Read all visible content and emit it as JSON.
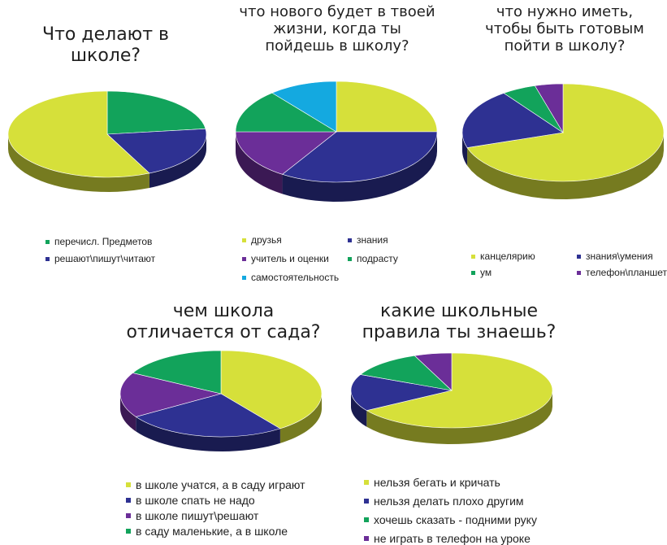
{
  "colors": {
    "yellow": "#d6e03a",
    "navy": "#2e3192",
    "green": "#12a35b",
    "purple": "#6b2e98",
    "cyan": "#14a9e0"
  },
  "chart_data": [
    {
      "type": "pie",
      "title": "Что делают  в\nшколе?",
      "series": [
        {
          "labels": [
            "перечисл.  Предметов",
            "решают\\пишут\\читают",
            ""
          ],
          "values": [
            23,
            20,
            57
          ],
          "colors": [
            "green",
            "navy",
            "yellow"
          ]
        }
      ],
      "legend": [
        "перечисл.  Предметов",
        "решают\\пишут\\читают"
      ],
      "legend_colors": [
        "green",
        "navy"
      ],
      "legend_placement": "bottom"
    },
    {
      "type": "pie",
      "title": "что нового будет в твоей\nжизни, когда ты\nпойдешь в школу?",
      "series": [
        {
          "labels": [
            "друзья",
            "знания",
            "учитель и оценки",
            "подрасту",
            "самостоятельность"
          ],
          "values": [
            25,
            34,
            16,
            14,
            11
          ],
          "colors": [
            "yellow",
            "navy",
            "purple",
            "green",
            "cyan"
          ]
        }
      ],
      "legend": [
        "друзья",
        "знания",
        "учитель и оценки",
        "подрасту",
        "самостоятельность"
      ],
      "legend_colors": [
        "yellow",
        "navy",
        "purple",
        "green",
        "cyan"
      ],
      "legend_placement": "bottom"
    },
    {
      "type": "pie",
      "title": "что нужно иметь,\nчтобы быть готовым\nпойти в школу?",
      "series": [
        {
          "labels": [
            "канцелярию",
            "знания\\умения",
            "ум",
            "телефон\\планшет"
          ],
          "values": [
            70,
            20,
            5.5,
            4.5
          ],
          "colors": [
            "yellow",
            "navy",
            "green",
            "purple"
          ]
        }
      ],
      "legend": [
        "канцелярию",
        "знания\\умения",
        "ум",
        "телефон\\планшет"
      ],
      "legend_colors": [
        "yellow",
        "navy",
        "green",
        "purple"
      ],
      "legend_placement": "bottom"
    },
    {
      "type": "pie",
      "title": "чем школа\nотличается от сада?",
      "series": [
        {
          "labels": [
            "в школе учатся, а в саду играют",
            "в школе спать не надо",
            "в школе пишут\\решают",
            "в саду маленькие, а в школе"
          ],
          "values": [
            40,
            26,
            17,
            17
          ],
          "colors": [
            "yellow",
            "navy",
            "purple",
            "green"
          ]
        }
      ],
      "legend": [
        "в школе учатся, а в саду играют",
        "в школе спать не надо",
        "в школе пишут\\решают",
        "в саду маленькие, а в школе"
      ],
      "legend_colors": [
        "yellow",
        "navy",
        "purple",
        "green"
      ],
      "legend_placement": "bottom"
    },
    {
      "type": "pie",
      "title": "какие школьные\nправила ты знаешь?",
      "series": [
        {
          "labels": [
            "нельзя бегать и кричать",
            "нельзя делать плохо другим",
            "хочешь сказать - подними руку",
            "не играть в телефон на уроке"
          ],
          "values": [
            66,
            16,
            12,
            6
          ],
          "colors": [
            "yellow",
            "navy",
            "green",
            "purple"
          ]
        }
      ],
      "legend": [
        "нельзя бегать и кричать",
        "нельзя делать плохо другим",
        "хочешь сказать - подними руку",
        "не играть в телефон на уроке"
      ],
      "legend_colors": [
        "yellow",
        "navy",
        "green",
        "purple"
      ],
      "legend_placement": "bottom"
    }
  ]
}
